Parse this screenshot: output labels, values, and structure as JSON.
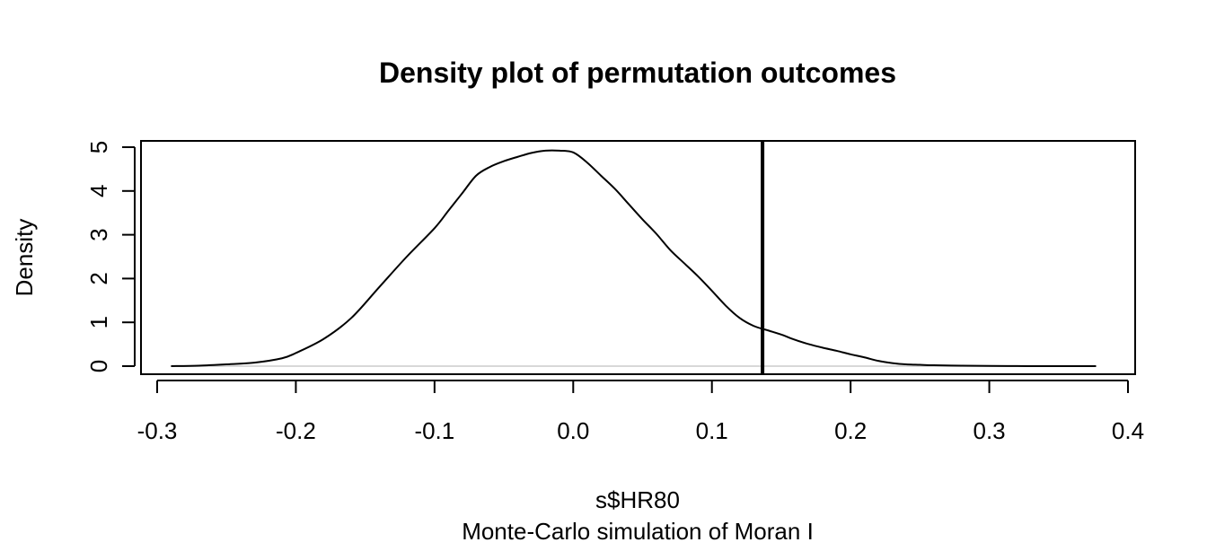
{
  "chart_data": {
    "type": "line",
    "title": "Density plot of permutation outcomes",
    "xlabel": "s$HR80",
    "subtitle": "Monte-Carlo simulation of Moran I",
    "ylabel": "Density",
    "xlim": [
      -0.3,
      0.4
    ],
    "ylim": [
      0,
      5
    ],
    "x_ticks": [
      "-0.3",
      "-0.2",
      "-0.1",
      "0.0",
      "0.1",
      "0.2",
      "0.3",
      "0.4"
    ],
    "y_ticks": [
      "0",
      "1",
      "2",
      "3",
      "4",
      "5"
    ],
    "grid": false,
    "baseline_y": 0,
    "observed_value": 0.1365,
    "series": [
      {
        "x": [
          -0.29,
          -0.27,
          -0.25,
          -0.23,
          -0.21,
          -0.2,
          -0.18,
          -0.16,
          -0.14,
          -0.12,
          -0.1,
          -0.09,
          -0.08,
          -0.07,
          -0.06,
          -0.05,
          -0.04,
          -0.03,
          -0.02,
          -0.01,
          0.0,
          0.01,
          0.02,
          0.03,
          0.04,
          0.05,
          0.06,
          0.07,
          0.08,
          0.09,
          0.1,
          0.11,
          0.12,
          0.13,
          0.14,
          0.15,
          0.16,
          0.17,
          0.18,
          0.19,
          0.2,
          0.21,
          0.22,
          0.23,
          0.24,
          0.25,
          0.26,
          0.28,
          0.3,
          0.32,
          0.34,
          0.36,
          0.377
        ],
        "y": [
          0.0,
          0.01,
          0.04,
          0.08,
          0.18,
          0.3,
          0.62,
          1.1,
          1.8,
          2.5,
          3.15,
          3.55,
          3.95,
          4.35,
          4.55,
          4.68,
          4.78,
          4.87,
          4.92,
          4.92,
          4.88,
          4.65,
          4.35,
          4.05,
          3.7,
          3.35,
          3.02,
          2.65,
          2.35,
          2.05,
          1.72,
          1.38,
          1.1,
          0.92,
          0.82,
          0.72,
          0.6,
          0.5,
          0.42,
          0.35,
          0.27,
          0.2,
          0.12,
          0.07,
          0.04,
          0.03,
          0.02,
          0.01,
          0.005,
          0.002,
          0.0,
          0.0,
          0.0
        ]
      }
    ]
  }
}
